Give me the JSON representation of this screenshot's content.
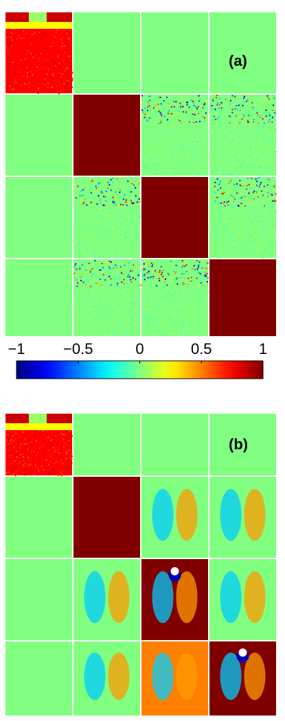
{
  "figure": {
    "panel_a_label": "(a)",
    "panel_b_label": "(b)"
  },
  "chart_data": [
    {
      "type": "heatmap",
      "title": "(a)",
      "grid": "4x4 matrix of image-shaped maps",
      "diagonal_color_value": 1,
      "off_diagonal_background_value": 0,
      "colormap": "jet",
      "cells": [
        {
          "row": 0,
          "col": 0,
          "content": "image",
          "value": 0.75
        },
        {
          "row": 0,
          "col": 1,
          "value": 0
        },
        {
          "row": 0,
          "col": 2,
          "value": 0
        },
        {
          "row": 0,
          "col": 3,
          "value": 0
        },
        {
          "row": 1,
          "col": 0,
          "value": 0
        },
        {
          "row": 1,
          "col": 1,
          "value": 1
        },
        {
          "row": 1,
          "col": 2,
          "value": 0,
          "pattern": "sparse noise"
        },
        {
          "row": 1,
          "col": 3,
          "value": 0,
          "pattern": "sparse noise"
        },
        {
          "row": 2,
          "col": 0,
          "value": 0
        },
        {
          "row": 2,
          "col": 1,
          "value": 0,
          "pattern": "sparse noise"
        },
        {
          "row": 2,
          "col": 2,
          "value": 1
        },
        {
          "row": 2,
          "col": 3,
          "value": 0,
          "pattern": "sparse noise"
        },
        {
          "row": 3,
          "col": 0,
          "value": 0
        },
        {
          "row": 3,
          "col": 1,
          "value": 0,
          "pattern": "sparse noise"
        },
        {
          "row": 3,
          "col": 2,
          "value": 0,
          "pattern": "sparse noise"
        },
        {
          "row": 3,
          "col": 3,
          "value": 1
        }
      ]
    },
    {
      "type": "heatmap",
      "title": "(b)",
      "grid": "4x4 matrix of image-shaped maps",
      "colormap": "jet",
      "cells": [
        {
          "row": 0,
          "col": 0,
          "content": "image",
          "value": 0.75
        },
        {
          "row": 0,
          "col": 1,
          "value": 0
        },
        {
          "row": 0,
          "col": 2,
          "value": 0
        },
        {
          "row": 0,
          "col": 3,
          "value": 0
        },
        {
          "row": 1,
          "col": 0,
          "value": 0
        },
        {
          "row": 1,
          "col": 1,
          "value": 1
        },
        {
          "row": 1,
          "col": 2,
          "value": 0,
          "pattern": "dipole lobes"
        },
        {
          "row": 1,
          "col": 3,
          "value": 0,
          "pattern": "dipole lobes"
        },
        {
          "row": 2,
          "col": 0,
          "value": 0
        },
        {
          "row": 2,
          "col": 1,
          "value": 0,
          "pattern": "dipole lobes"
        },
        {
          "row": 2,
          "col": 2,
          "value": 1,
          "pattern": "core dipole"
        },
        {
          "row": 2,
          "col": 3,
          "value": 0,
          "pattern": "dipole lobes"
        },
        {
          "row": 3,
          "col": 0,
          "value": 0
        },
        {
          "row": 3,
          "col": 1,
          "value": 0,
          "pattern": "dipole lobes"
        },
        {
          "row": 3,
          "col": 2,
          "value": 0.5,
          "pattern": "dipole lobes"
        },
        {
          "row": 3,
          "col": 3,
          "value": 1,
          "pattern": "core dipole"
        }
      ]
    }
  ],
  "colorbar": {
    "tick_labels": [
      "−1",
      "−0.5",
      "0",
      "0.5",
      "1"
    ],
    "tick_values": [
      -1,
      -0.5,
      0,
      0.5,
      1
    ],
    "range": [
      -1,
      1
    ],
    "colormap": "jet"
  },
  "colors": {
    "green_background": "#80ff80",
    "dark_red": "#800000",
    "image_orange": "#ff9a1e"
  }
}
